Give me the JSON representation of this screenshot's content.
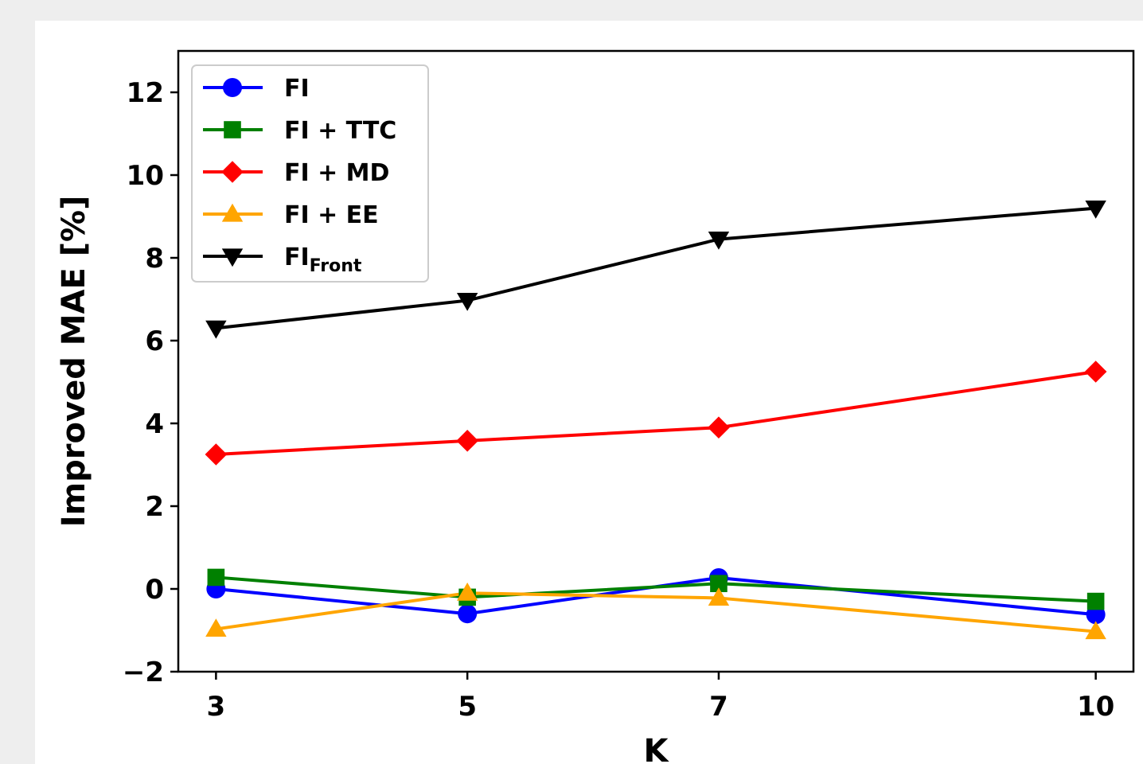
{
  "chart_data": {
    "type": "line",
    "x": [
      3,
      5,
      7,
      10
    ],
    "xticks": [
      "3",
      "5",
      "7",
      "10"
    ],
    "yticks": [
      "−2",
      "0",
      "2",
      "4",
      "6",
      "8",
      "10",
      "12"
    ],
    "ytick_values": [
      -2,
      0,
      2,
      4,
      6,
      8,
      10,
      12
    ],
    "xlim": [
      2.7,
      10.3
    ],
    "ylim": [
      -2,
      13
    ],
    "xlabel": "K",
    "ylabel": "Improved MAE [%]",
    "grid": false,
    "legend_position": "top-left",
    "series": [
      {
        "name": "FI",
        "name_sub": "",
        "color": "#0000ff",
        "marker": "circle",
        "values": [
          0.0,
          -0.6,
          0.27,
          -0.62
        ]
      },
      {
        "name": "FI + TTC",
        "name_sub": "",
        "color": "#008000",
        "marker": "square",
        "values": [
          0.28,
          -0.2,
          0.13,
          -0.3
        ]
      },
      {
        "name": "FI + MD",
        "name_sub": "",
        "color": "#ff0000",
        "marker": "diamond",
        "values": [
          3.25,
          3.58,
          3.9,
          5.25
        ]
      },
      {
        "name": "FI + EE",
        "name_sub": "",
        "color": "#ffa500",
        "marker": "triangle-up",
        "values": [
          -0.97,
          -0.1,
          -0.22,
          -1.03
        ]
      },
      {
        "name": "FI",
        "name_sub": "Front",
        "color": "#000000",
        "marker": "triangle-down",
        "values": [
          6.3,
          6.97,
          8.45,
          9.2
        ]
      }
    ]
  }
}
